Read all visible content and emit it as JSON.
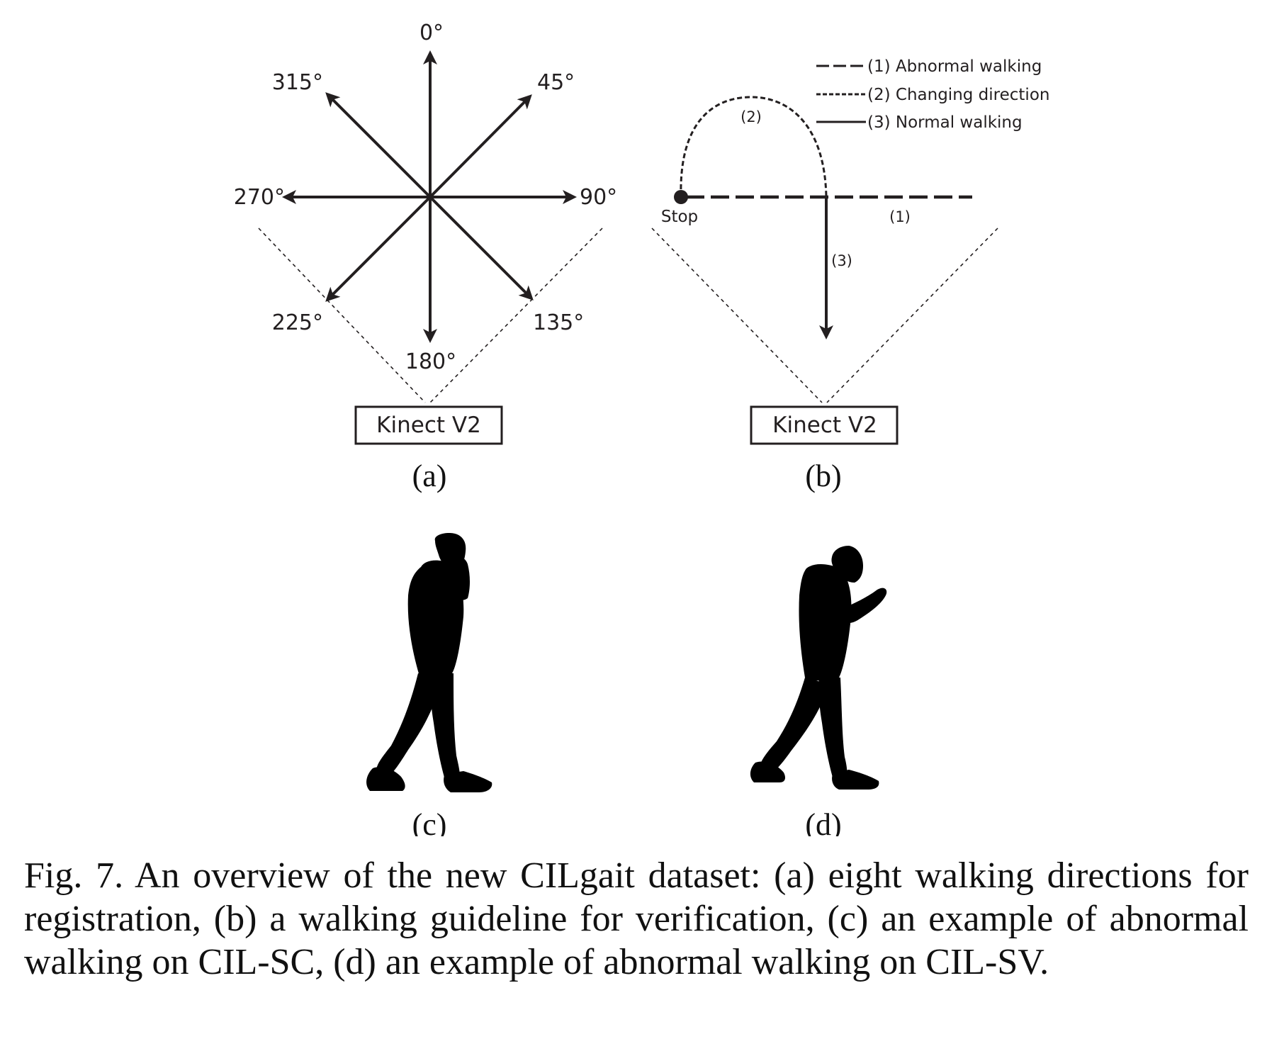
{
  "panel_a": {
    "directions": [
      "0°",
      "45°",
      "90°",
      "135°",
      "180°",
      "225°",
      "270°",
      "315°"
    ],
    "device_label": "Kinect V2",
    "sub_label": "(a)"
  },
  "panel_b": {
    "legend": [
      {
        "label": "(1) Abnormal walking",
        "style": "long-dash"
      },
      {
        "label": "(2) Changing direction",
        "style": "short-dash"
      },
      {
        "label": "(3) Normal walking",
        "style": "solid"
      }
    ],
    "path_labels": {
      "stop": "Stop",
      "abnormal": "(1)",
      "changing": "(2)",
      "normal": "(3)"
    },
    "device_label": "Kinect V2",
    "sub_label": "(b)"
  },
  "panel_c": {
    "sub_label": "(c)",
    "image_content": "silhouette-walking-phone-call"
  },
  "panel_d": {
    "sub_label": "(d)",
    "image_content": "silhouette-walking-texting"
  },
  "caption": "Fig. 7.  An overview of the new CILgait dataset: (a) eight walking directions for registration, (b) a walking guideline for verification, (c) an example of abnormal walking on CIL-SC, (d) an example of abnormal walking on CIL-SV."
}
